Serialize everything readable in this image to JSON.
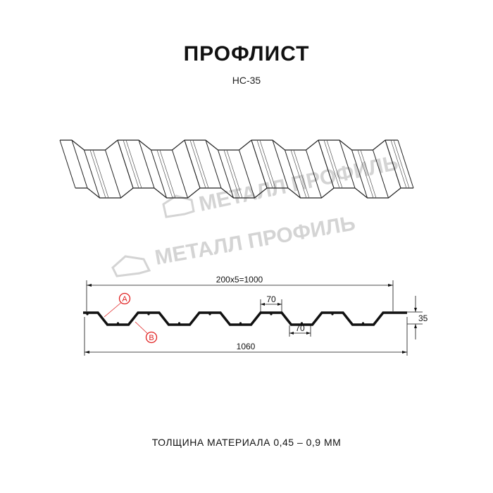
{
  "title": "ПРОФЛИСТ",
  "subtitle": "НС-35",
  "footer": "ТОЛЩИНА МАТЕРИАЛА 0,45 – 0,9 ММ",
  "watermark": "МЕТАЛЛ ПРОФИЛЬ",
  "dimensions": {
    "working_width": "200x5=1000",
    "total_width": "1060",
    "height": "35",
    "top_flange": "70",
    "bottom_flange": "70"
  },
  "markers": {
    "a": "A",
    "b": "B"
  },
  "colors": {
    "marker": "#e02020",
    "line": "#111111",
    "watermark": "#d4d4d4"
  }
}
